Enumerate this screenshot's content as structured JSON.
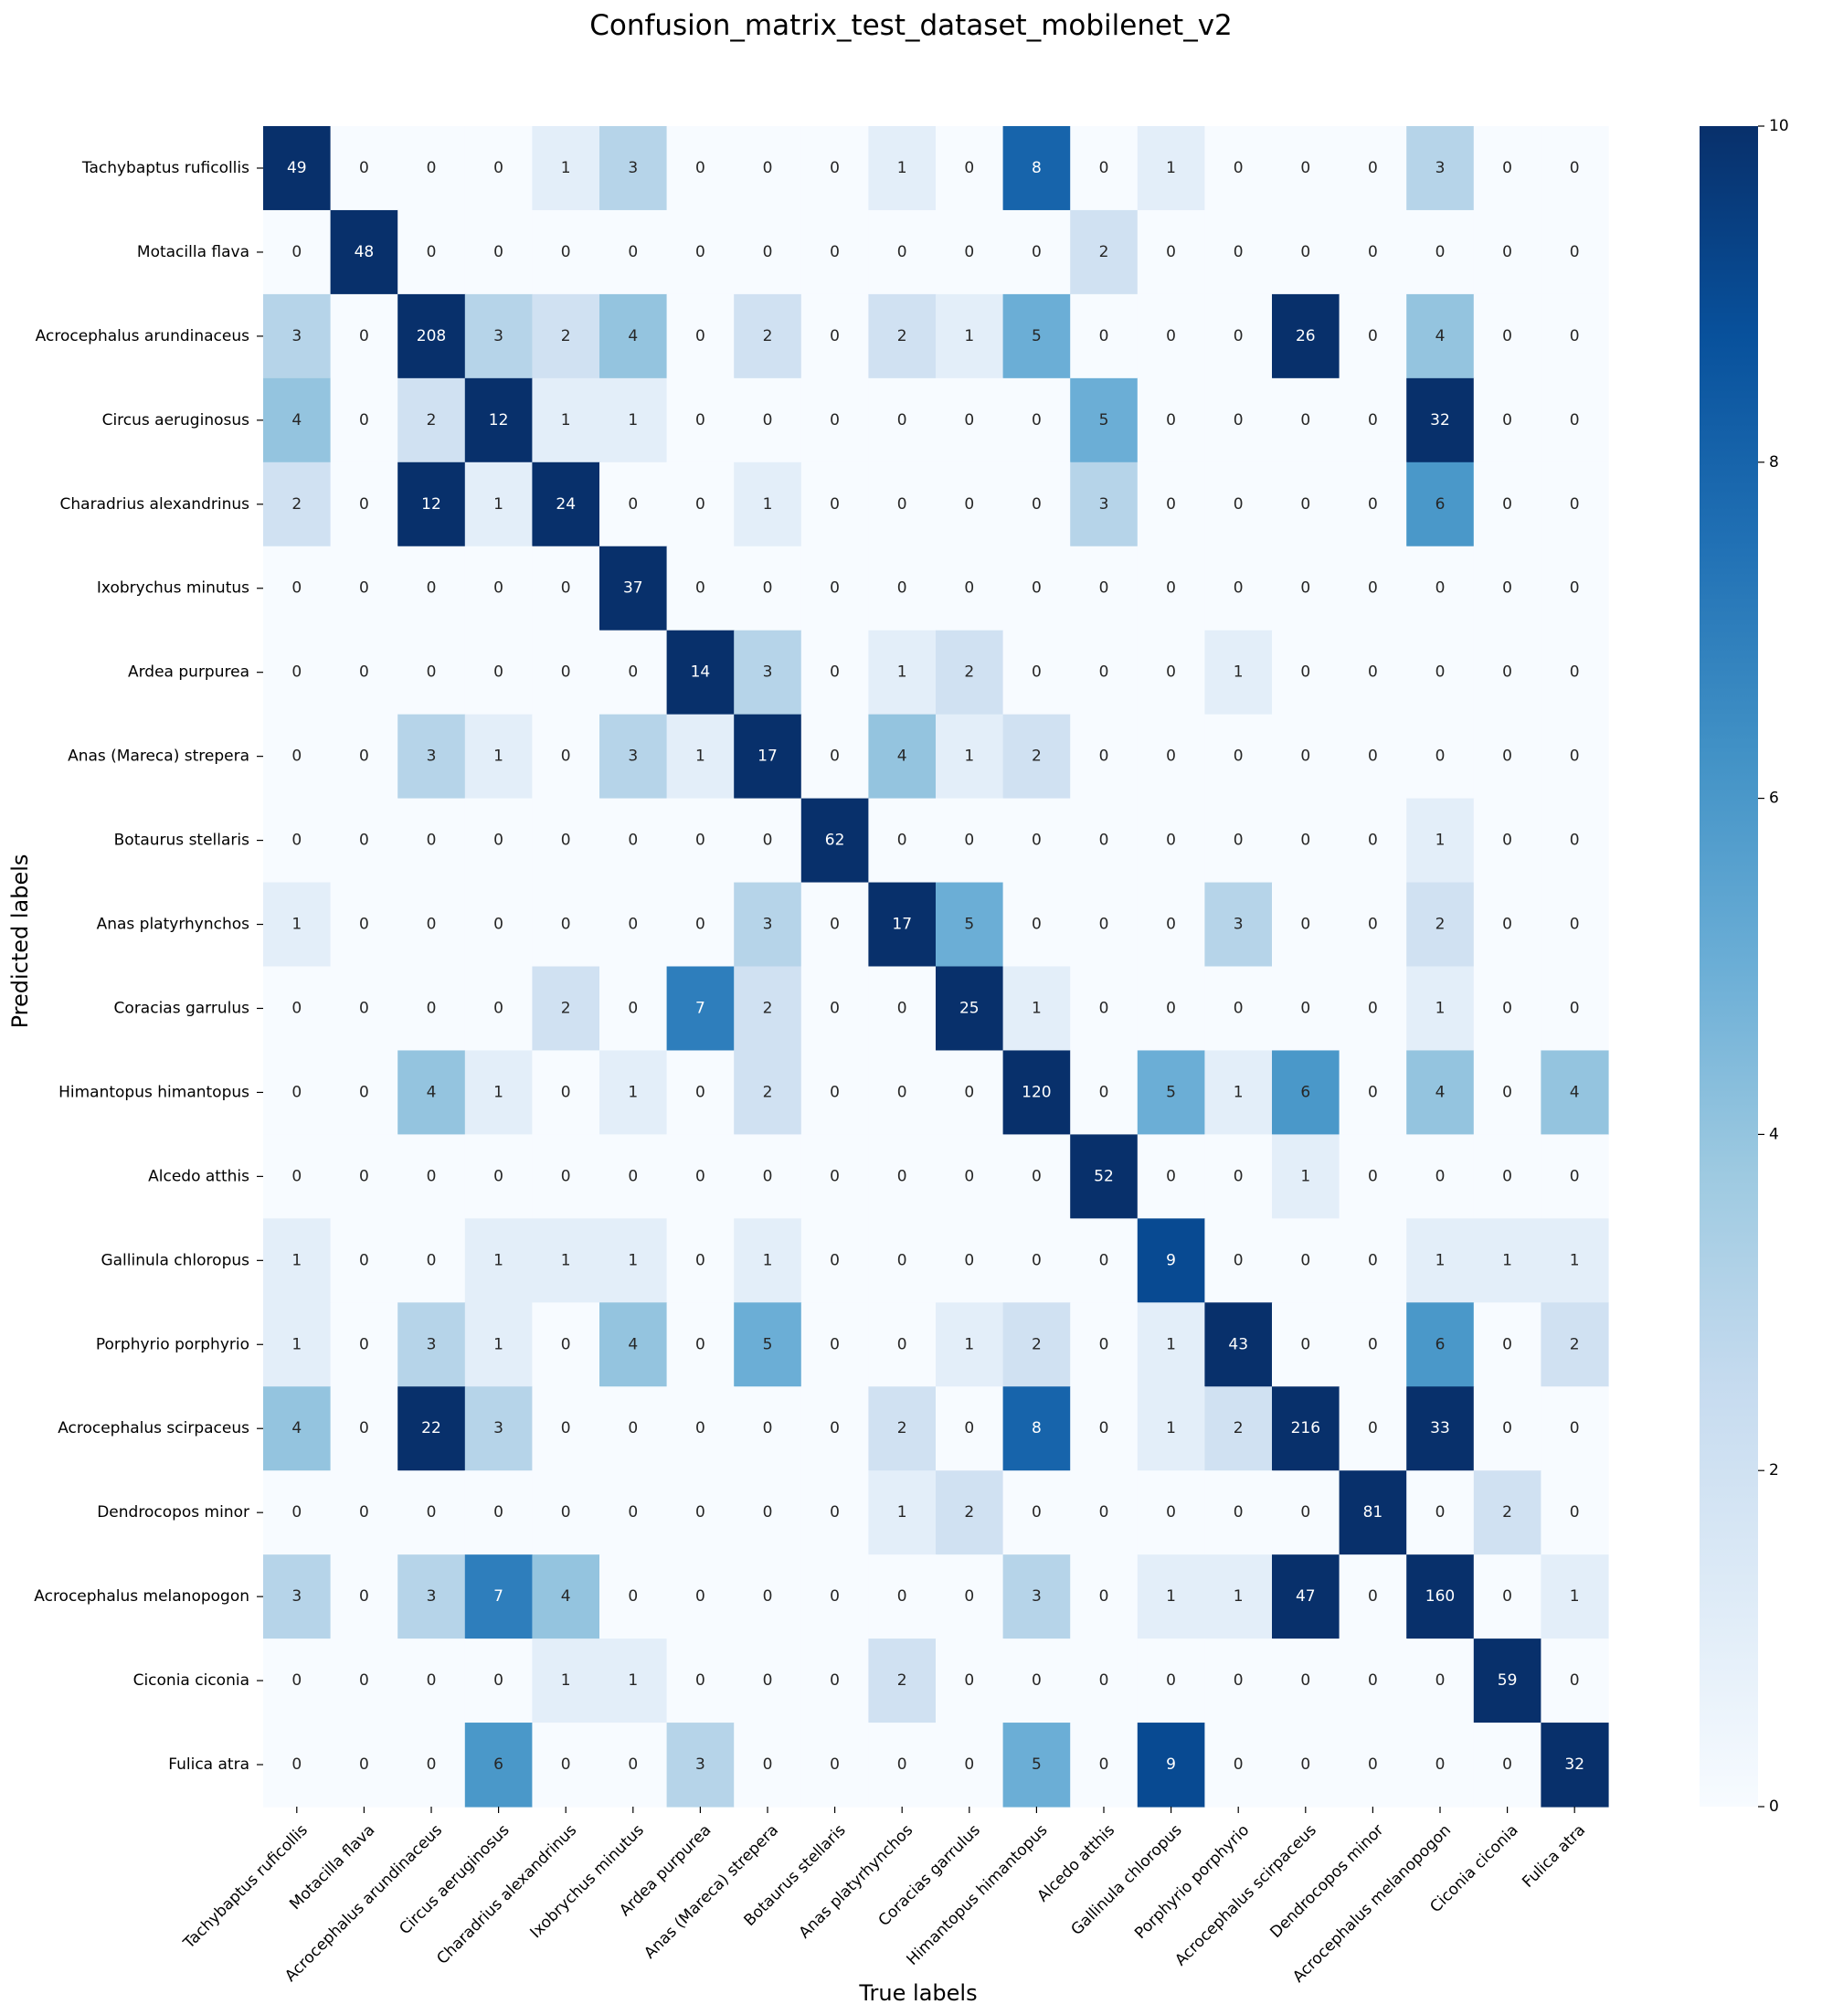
{
  "chart_data": {
    "type": "heatmap",
    "title": "Confusion_matrix_test_dataset_mobilenet_v2",
    "xlabel": "True labels",
    "ylabel": "Predicted labels",
    "labels": [
      "Tachybaptus ruficollis",
      "Motacilla flava",
      "Acrocephalus arundinaceus",
      "Circus aeruginosus",
      "Charadrius alexandrinus",
      "Ixobrychus minutus",
      "Ardea purpurea",
      "Anas (Mareca) strepera",
      "Botaurus stellaris",
      "Anas platyrhynchos",
      "Coracias garrulus",
      "Himantopus himantopus",
      "Alcedo atthis",
      "Gallinula chloropus",
      "Porphyrio porphyrio",
      "Acrocephalus scirpaceus",
      "Dendrocopos minor",
      "Acrocephalus melanopogon",
      "Ciconia ciconia",
      "Fulica atra"
    ],
    "matrix": [
      [
        49,
        0,
        0,
        0,
        1,
        3,
        0,
        0,
        0,
        1,
        0,
        8,
        0,
        1,
        0,
        0,
        0,
        3,
        0,
        0
      ],
      [
        0,
        48,
        0,
        0,
        0,
        0,
        0,
        0,
        0,
        0,
        0,
        0,
        2,
        0,
        0,
        0,
        0,
        0,
        0,
        0
      ],
      [
        3,
        0,
        208,
        3,
        2,
        4,
        0,
        2,
        0,
        2,
        1,
        5,
        0,
        0,
        0,
        26,
        0,
        4,
        0,
        0
      ],
      [
        4,
        0,
        2,
        12,
        1,
        1,
        0,
        0,
        0,
        0,
        0,
        0,
        5,
        0,
        0,
        0,
        0,
        32,
        0,
        0
      ],
      [
        2,
        0,
        12,
        1,
        24,
        0,
        0,
        1,
        0,
        0,
        0,
        0,
        3,
        0,
        0,
        0,
        0,
        6,
        0,
        0
      ],
      [
        0,
        0,
        0,
        0,
        0,
        37,
        0,
        0,
        0,
        0,
        0,
        0,
        0,
        0,
        0,
        0,
        0,
        0,
        0,
        0
      ],
      [
        0,
        0,
        0,
        0,
        0,
        0,
        14,
        3,
        0,
        1,
        2,
        0,
        0,
        0,
        1,
        0,
        0,
        0,
        0,
        0
      ],
      [
        0,
        0,
        3,
        1,
        0,
        3,
        1,
        17,
        0,
        4,
        1,
        2,
        0,
        0,
        0,
        0,
        0,
        0,
        0,
        0
      ],
      [
        0,
        0,
        0,
        0,
        0,
        0,
        0,
        0,
        62,
        0,
        0,
        0,
        0,
        0,
        0,
        0,
        0,
        1,
        0,
        0
      ],
      [
        1,
        0,
        0,
        0,
        0,
        0,
        0,
        3,
        0,
        17,
        5,
        0,
        0,
        0,
        3,
        0,
        0,
        2,
        0,
        0
      ],
      [
        0,
        0,
        0,
        0,
        2,
        0,
        7,
        2,
        0,
        0,
        25,
        1,
        0,
        0,
        0,
        0,
        0,
        1,
        0,
        0
      ],
      [
        0,
        0,
        4,
        1,
        0,
        1,
        0,
        2,
        0,
        0,
        0,
        120,
        0,
        5,
        1,
        6,
        0,
        4,
        0,
        4
      ],
      [
        0,
        0,
        0,
        0,
        0,
        0,
        0,
        0,
        0,
        0,
        0,
        0,
        52,
        0,
        0,
        1,
        0,
        0,
        0,
        0
      ],
      [
        1,
        0,
        0,
        1,
        1,
        1,
        0,
        1,
        0,
        0,
        0,
        0,
        0,
        9,
        0,
        0,
        0,
        1,
        1,
        1
      ],
      [
        1,
        0,
        3,
        1,
        0,
        4,
        0,
        5,
        0,
        0,
        1,
        2,
        0,
        1,
        43,
        0,
        0,
        6,
        0,
        2
      ],
      [
        4,
        0,
        22,
        3,
        0,
        0,
        0,
        0,
        0,
        2,
        0,
        8,
        0,
        1,
        2,
        216,
        0,
        33,
        0,
        0
      ],
      [
        0,
        0,
        0,
        0,
        0,
        0,
        0,
        0,
        0,
        1,
        2,
        0,
        0,
        0,
        0,
        0,
        81,
        0,
        2,
        0
      ],
      [
        3,
        0,
        3,
        7,
        4,
        0,
        0,
        0,
        0,
        0,
        0,
        3,
        0,
        1,
        1,
        47,
        0,
        160,
        0,
        1
      ],
      [
        0,
        0,
        0,
        0,
        1,
        1,
        0,
        0,
        0,
        2,
        0,
        0,
        0,
        0,
        0,
        0,
        0,
        0,
        59,
        0
      ],
      [
        0,
        0,
        0,
        6,
        0,
        0,
        3,
        0,
        0,
        0,
        0,
        5,
        0,
        9,
        0,
        0,
        0,
        0,
        0,
        32
      ]
    ],
    "colorbar": {
      "vmin": 0,
      "vmax": 10,
      "ticks": [
        "0",
        "2",
        "4",
        "6",
        "8",
        "10"
      ],
      "colormap": "Blues"
    }
  }
}
